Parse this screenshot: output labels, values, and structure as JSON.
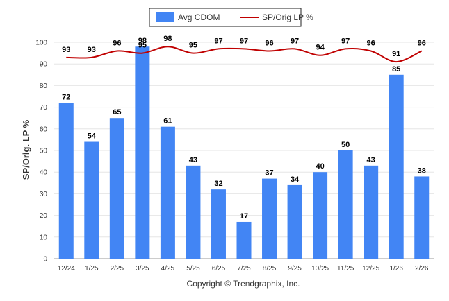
{
  "chart_data": {
    "type": "bar",
    "categories": [
      "12/24",
      "1/25",
      "2/25",
      "3/25",
      "4/25",
      "5/25",
      "6/25",
      "7/25",
      "8/25",
      "9/25",
      "10/25",
      "11/25",
      "12/25",
      "1/26",
      "2/26"
    ],
    "series": [
      {
        "name": "Avg CDOM",
        "type": "bar",
        "color": "#4285f4",
        "values": [
          72,
          54,
          65,
          98,
          61,
          43,
          32,
          17,
          37,
          34,
          40,
          50,
          43,
          85,
          38
        ]
      },
      {
        "name": "SP/Orig LP %",
        "type": "line",
        "color": "#c00000",
        "values": [
          93,
          93,
          96,
          95,
          98,
          95,
          97,
          97,
          96,
          97,
          94,
          97,
          96,
          91,
          96
        ]
      }
    ],
    "ylabel": "SP/Orig. LP %",
    "ylim": [
      0,
      100
    ],
    "yticks": [
      0,
      10,
      20,
      30,
      40,
      50,
      60,
      70,
      80,
      90,
      100
    ],
    "grid": true,
    "legend_position": "top-center"
  },
  "footer": {
    "copyright": "Copyright © Trendgraphix, Inc."
  }
}
